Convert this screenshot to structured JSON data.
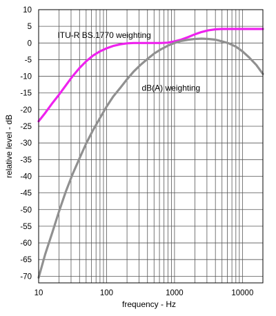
{
  "chart_data": {
    "type": "line",
    "title": "",
    "xlabel": "frequency - Hz",
    "ylabel": "relative level - dB",
    "xscale": "log",
    "xlim": [
      10,
      20000
    ],
    "ylim": [
      -72,
      10
    ],
    "grid": true,
    "legend": "none",
    "x_ticks": [
      10,
      100,
      1000,
      10000
    ],
    "x_tick_labels": [
      "10",
      "100",
      "1000",
      "10000"
    ],
    "y_ticks": [
      10,
      5,
      0,
      -5,
      -10,
      -15,
      -20,
      -25,
      -30,
      -35,
      -40,
      -45,
      -50,
      -55,
      -60,
      -65,
      -70
    ],
    "y_tick_labels": [
      "10",
      "5",
      "0",
      "-5",
      "-10",
      "-15",
      "-20",
      "-25",
      "-30",
      "-35",
      "-40",
      "-45",
      "-50",
      "-55",
      "-60",
      "-65",
      "-70"
    ],
    "series": [
      {
        "color": "#ee22ee",
        "x": [
          10,
          12.5,
          16,
          20,
          25,
          31.5,
          40,
          50,
          63,
          80,
          100,
          125,
          160,
          200,
          250,
          315,
          400,
          500,
          630,
          800,
          1000,
          1250,
          1600,
          2000,
          2500,
          3150,
          4000,
          5000,
          6300,
          8000,
          10000,
          12500,
          16000,
          20000
        ],
        "y": [
          -23.5,
          -21,
          -18,
          -15.5,
          -12.8,
          -10,
          -7.5,
          -5.5,
          -3.8,
          -2.5,
          -1.6,
          -0.9,
          -0.4,
          -0.1,
          0,
          0,
          0,
          0,
          0,
          0.1,
          0.5,
          1.0,
          1.8,
          2.6,
          3.3,
          3.8,
          4.1,
          4.2,
          4.2,
          4.2,
          4.2,
          4.2,
          4.2,
          4.2
        ]
      },
      {
        "color": "#909090",
        "x": [
          10,
          12.5,
          16,
          20,
          25,
          31.5,
          40,
          50,
          63,
          80,
          100,
          125,
          160,
          200,
          250,
          315,
          400,
          500,
          630,
          800,
          1000,
          1250,
          1600,
          2000,
          2500,
          3150,
          4000,
          5000,
          6300,
          8000,
          10000,
          12500,
          16000,
          20000
        ],
        "y": [
          -70.4,
          -63.4,
          -56.7,
          -50.5,
          -44.7,
          -39.4,
          -34.6,
          -30.2,
          -26.2,
          -22.5,
          -19.1,
          -16.1,
          -13.4,
          -10.9,
          -8.6,
          -6.6,
          -4.8,
          -3.2,
          -1.9,
          -0.8,
          0,
          0.6,
          1.0,
          1.2,
          1.3,
          1.2,
          1.0,
          0.5,
          -0.1,
          -1.1,
          -2.5,
          -4.3,
          -6.6,
          -9.3
        ]
      }
    ],
    "annotations": [
      {
        "text": "ITU-R BS.1770 weighting",
        "x": 19,
        "y": 1.5
      },
      {
        "text": "dB(A) weighting",
        "x": 330,
        "y": -14.3
      }
    ]
  }
}
